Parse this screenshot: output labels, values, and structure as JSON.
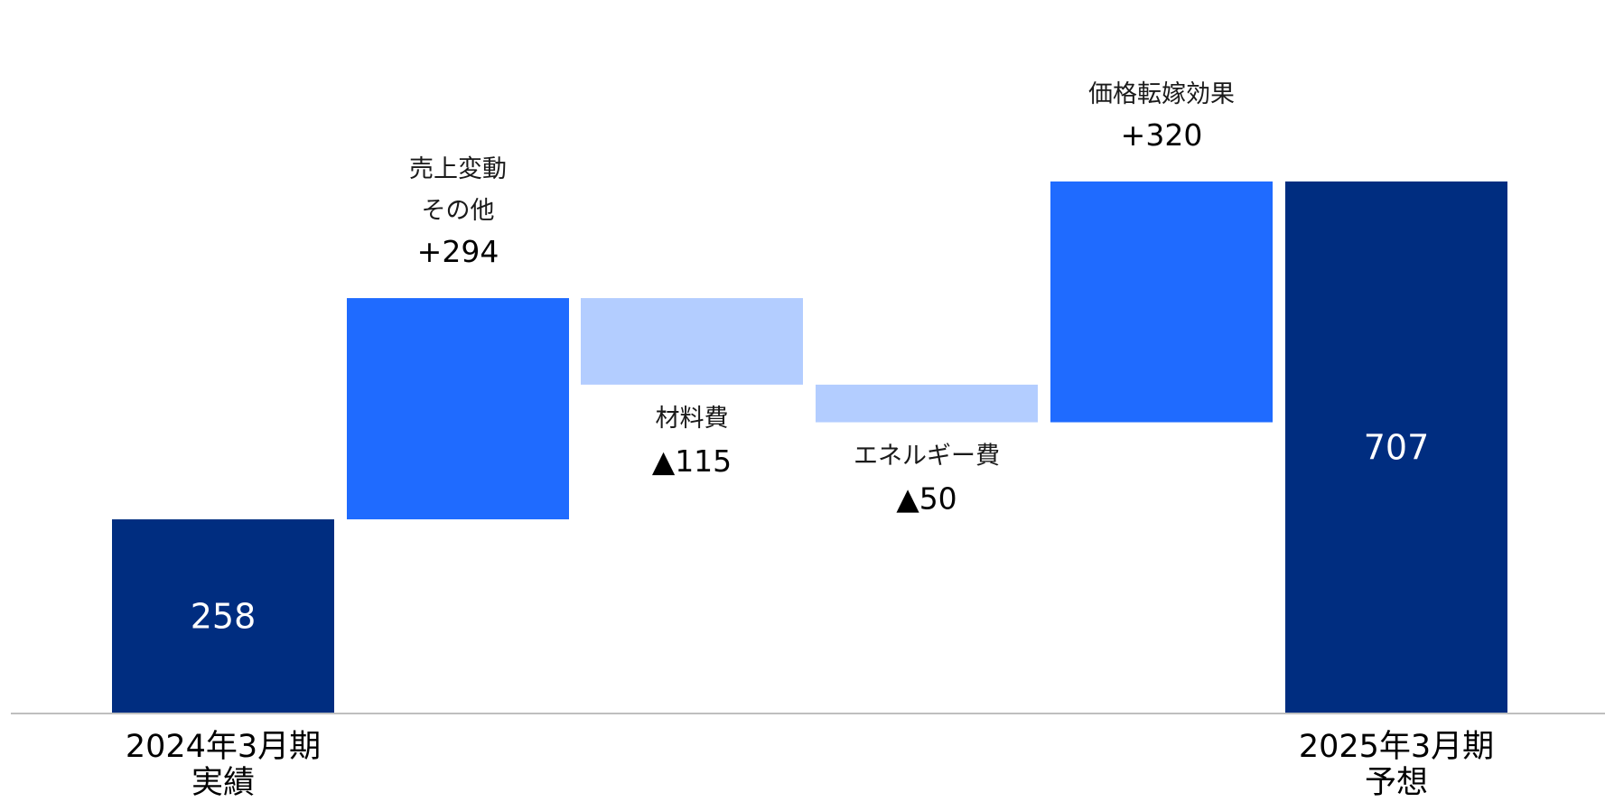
{
  "chart_data": {
    "type": "bar",
    "subtype": "waterfall",
    "categories": [
      "2024年3月期 実績",
      "売上変動 その他",
      "材料費",
      "エネルギー費",
      "価格転嫁効果",
      "2025年3月期 予想"
    ],
    "steps": [
      {
        "kind": "total",
        "axis_label": [
          "2024年3月期",
          "実績"
        ],
        "name_label": [],
        "value": 258,
        "value_label": "258",
        "color": "#002d80"
      },
      {
        "kind": "increase",
        "axis_label": [],
        "name_label": [
          "売上変動",
          "その他"
        ],
        "value": 294,
        "value_label": "+294",
        "color": "#1f6bff"
      },
      {
        "kind": "decrease",
        "axis_label": [],
        "name_label": [
          "材料費"
        ],
        "value": -115,
        "value_label": "▲115",
        "color": "#b3cdff"
      },
      {
        "kind": "decrease",
        "axis_label": [],
        "name_label": [
          "エネルギー費"
        ],
        "value": -50,
        "value_label": "▲50",
        "color": "#b3cdff"
      },
      {
        "kind": "increase",
        "axis_label": [],
        "name_label": [
          "価格転嫁効果"
        ],
        "value": 320,
        "value_label": "+320",
        "color": "#1f6bff"
      },
      {
        "kind": "total",
        "axis_label": [
          "2025年3月期",
          "予想"
        ],
        "name_label": [],
        "value": 707,
        "value_label": "707",
        "color": "#002d80"
      }
    ],
    "ylim": [
      0,
      780
    ],
    "grid": false,
    "legend": "none",
    "baseline_color": "#bfbfbf"
  }
}
